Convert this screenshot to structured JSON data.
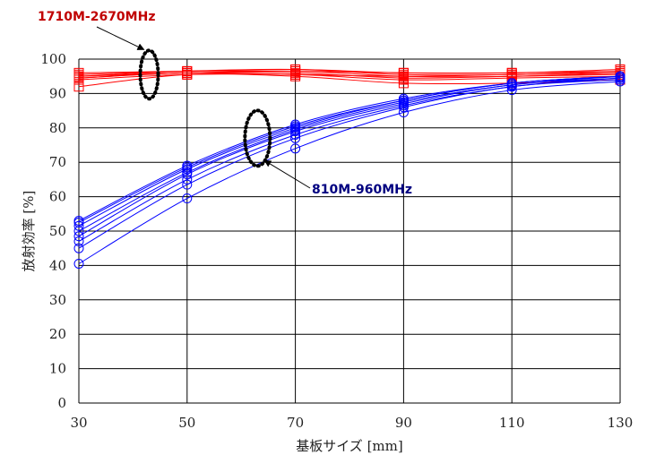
{
  "chart_data": {
    "type": "line",
    "title": "",
    "xlabel": "基板サイズ [mm]",
    "ylabel": "放射効率 [%]",
    "xlim": [
      30,
      130
    ],
    "ylim": [
      0,
      100
    ],
    "x_ticks": [
      "30",
      "50",
      "70",
      "90",
      "110",
      "130"
    ],
    "y_ticks": [
      "0",
      "10",
      "20",
      "30",
      "40",
      "50",
      "60",
      "70",
      "80",
      "90",
      "100"
    ],
    "grid": true,
    "x": [
      30,
      50,
      70,
      90,
      110,
      130
    ],
    "series_groups": [
      {
        "label": "1710M-2670MHz",
        "color": "#ff0000",
        "label_color": "#c00000",
        "marker": "square",
        "series": [
          {
            "values": [
              92,
              95.5,
              95,
              93,
              93,
              94
            ]
          },
          {
            "values": [
              94,
              95.5,
              95.5,
              94,
              94.5,
              95
            ]
          },
          {
            "values": [
              94.5,
              96,
              96,
              94.5,
              95,
              95.5
            ]
          },
          {
            "values": [
              95,
              96,
              96.5,
              95,
              95,
              96
            ]
          },
          {
            "values": [
              95,
              96.5,
              97,
              95.5,
              95.5,
              96.5
            ]
          },
          {
            "values": [
              95.5,
              96.5,
              96.5,
              96,
              96,
              96.5
            ]
          },
          {
            "values": [
              96,
              96.5,
              97,
              96,
              96,
              97
            ]
          },
          {
            "values": [
              94.5,
              96,
              95.5,
              95,
              95.5,
              96
            ]
          }
        ]
      },
      {
        "label": "810M-960MHz",
        "color": "#0000ff",
        "label_color": "#000080",
        "marker": "circle",
        "series": [
          {
            "values": [
              40.5,
              59.5,
              74,
              84.5,
              91,
              93.5
            ]
          },
          {
            "values": [
              45,
              63.5,
              77,
              86,
              92,
              94
            ]
          },
          {
            "values": [
              47,
              65,
              78,
              86.5,
              92,
              94.5
            ]
          },
          {
            "values": [
              48.5,
              66.5,
              79,
              87,
              92.5,
              94.5
            ]
          },
          {
            "values": [
              50,
              67,
              79.5,
              87.5,
              92.5,
              95
            ]
          },
          {
            "values": [
              51.5,
              68,
              80,
              88,
              93,
              95
            ]
          },
          {
            "values": [
              52.5,
              68.5,
              80.5,
              88,
              93,
              95
            ]
          },
          {
            "values": [
              53,
              69,
              81,
              88.5,
              93,
              95
            ]
          }
        ]
      }
    ],
    "annotations": [
      {
        "text": "1710M-2670MHz",
        "group": 0
      },
      {
        "text": "810M-960MHz",
        "group": 1
      }
    ]
  }
}
